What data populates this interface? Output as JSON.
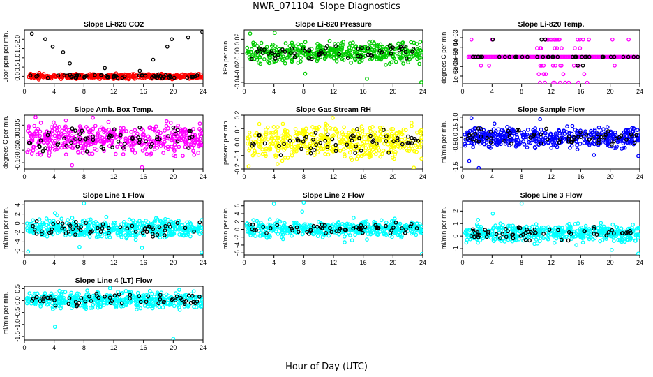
{
  "header": {
    "site": "NWR_071104",
    "title": "Slope Diagnostics"
  },
  "chart_data": {
    "type": "scatter",
    "xlabel": "Hour of Day (UTC)",
    "x_ticks": [
      0,
      4,
      8,
      12,
      16,
      20,
      24
    ],
    "xlim": [
      0,
      24
    ],
    "panels": [
      {
        "title": "Slope Li-820 CO2",
        "ylabel": "Licor ppm per min.",
        "color": "#ff0000",
        "ylim": [
          -0.4,
          2.5
        ],
        "yticks": [
          "0.0",
          "0.5",
          "1.0",
          "1.5",
          "2.0"
        ],
        "ytick_values": [
          0,
          0.5,
          1.0,
          1.5,
          2.0
        ],
        "band": [
          -0.15,
          0.15
        ],
        "seed": 11,
        "n": 420,
        "outliers": [
          [
            1,
            2.3
          ],
          [
            2.8,
            2.0
          ],
          [
            3.8,
            1.6
          ],
          [
            5.2,
            1.3
          ],
          [
            6.1,
            0.7
          ],
          [
            10.8,
            0.45
          ],
          [
            15.5,
            0.3
          ],
          [
            17.3,
            0.9
          ],
          [
            19.2,
            1.6
          ],
          [
            19.8,
            2.0
          ],
          [
            22,
            2.1
          ],
          [
            23.9,
            2.4
          ]
        ]
      },
      {
        "title": "Slope Li-820 Pressure",
        "ylabel": "kPa per min.",
        "color": "#00cc00",
        "ylim": [
          -0.042,
          0.033
        ],
        "yticks": [
          "-0.04",
          "-0.02",
          "0.00",
          "0.02"
        ],
        "ytick_values": [
          -0.04,
          -0.02,
          0.0,
          0.02
        ],
        "band": [
          -0.015,
          0.018
        ],
        "seed": 23,
        "n": 420,
        "outliers": [
          [
            0.8,
            0.028
          ],
          [
            16.5,
            -0.035
          ],
          [
            23.8,
            -0.04
          ],
          [
            8.2,
            -0.028
          ],
          [
            4.1,
            0.029
          ]
        ]
      },
      {
        "title": "Slope Li-820 Temp.",
        "ylabel": "degrees C per min.",
        "color": "#ff00ff",
        "ylim": [
          -0.0014,
          0.0014
        ],
        "yticks": [
          "-1e-03",
          "-5e-04",
          "0e+00",
          "5e-04",
          "1e-03"
        ],
        "ytick_values": [
          -0.001,
          -0.0005,
          0,
          0.0005,
          0.001
        ],
        "discrete": true,
        "seed": 37
      },
      {
        "title": "Slope Amb. Box Temp.",
        "ylabel": "degrees C per min.",
        "color": "#ff00ff",
        "ylim": [
          -0.125,
          0.09
        ],
        "yticks": [
          "-0.10",
          "-0.05",
          "0.00",
          "0.05"
        ],
        "ytick_values": [
          -0.1,
          -0.05,
          0,
          0.05
        ],
        "band": [
          -0.075,
          0.06
        ],
        "seed": 41,
        "n": 460,
        "outliers": [
          [
            1.5,
            0.082
          ],
          [
            6.4,
            -0.11
          ],
          [
            15.8,
            -0.118
          ],
          [
            9.2,
            0.08
          ]
        ]
      },
      {
        "title": "Slope Gas Stream RH",
        "ylabel": "percent per min.",
        "color": "#ffff00",
        "ylim": [
          -0.2,
          0.2
        ],
        "yticks": [
          "-0.2",
          "-0.1",
          "0.0",
          "0.1",
          "0.2"
        ],
        "ytick_values": [
          -0.2,
          -0.1,
          0,
          0.1,
          0.2
        ],
        "band": [
          -0.14,
          0.15
        ],
        "seed": 53,
        "n": 460,
        "outliers": [
          [
            22.8,
            -0.19
          ],
          [
            0.6,
            -0.18
          ],
          [
            11.9,
            0.18
          ]
        ]
      },
      {
        "title": "Slope Sample Flow",
        "ylabel": "ml/min per min.",
        "color": "#0000ff",
        "ylim": [
          -1.6,
          1.1
        ],
        "yticks": [
          "-1.5",
          "-0.5",
          "0.0",
          "0.5",
          "1.0"
        ],
        "ytick_values": [
          -1.5,
          -0.5,
          0,
          0.5,
          1.0
        ],
        "band": [
          -0.6,
          0.6
        ],
        "seed": 67,
        "n": 460,
        "outliers": [
          [
            2.2,
            -1.55
          ],
          [
            1.2,
            0.95
          ],
          [
            0.9,
            -1.2
          ],
          [
            10.5,
            0.9
          ],
          [
            17.8,
            -0.9
          ],
          [
            23.8,
            -0.95
          ]
        ]
      },
      {
        "title": "Slope Line 1 Flow",
        "ylabel": "ml/min per min.",
        "color": "#00ffff",
        "ylim": [
          -6.8,
          4.8
        ],
        "yticks": [
          "-6",
          "-4",
          "-2",
          "0",
          "2",
          "4"
        ],
        "ytick_values": [
          -6,
          -4,
          -2,
          0,
          2,
          4
        ],
        "band": [
          -3.4,
          1.2
        ],
        "seed": 79,
        "n": 460,
        "outliers": [
          [
            8,
            4.3
          ],
          [
            4.1,
            2.2
          ],
          [
            0.5,
            -6.1
          ],
          [
            23.8,
            -6.3
          ],
          [
            15.8,
            -5.3
          ],
          [
            7.4,
            -5.1
          ]
        ]
      },
      {
        "title": "Slope Line 2 Flow",
        "ylabel": "ml/min per min.",
        "color": "#00ffff",
        "ylim": [
          -6.5,
          7.2
        ],
        "yticks": [
          "-6",
          "-4",
          "-2",
          "0",
          "2",
          "4",
          "6"
        ],
        "ytick_values": [
          -6,
          -4,
          -2,
          0,
          2,
          4,
          6
        ],
        "band": [
          -2.2,
          2.6
        ],
        "seed": 83,
        "n": 460,
        "outliers": [
          [
            4,
            6.5
          ],
          [
            8,
            6.8
          ],
          [
            7.8,
            4.5
          ],
          [
            23.9,
            -6.3
          ],
          [
            13.5,
            -3.3
          ],
          [
            14.5,
            -2.8
          ],
          [
            16.5,
            -2.6
          ]
        ]
      },
      {
        "title": "Slope Line 3 Flow",
        "ylabel": "ml/min per min.",
        "color": "#00ffff",
        "ylim": [
          -1.5,
          2.8
        ],
        "yticks": [
          "-1",
          "0",
          "1",
          "2"
        ],
        "ytick_values": [
          -1,
          0,
          1,
          2
        ],
        "band": [
          -0.6,
          1.0
        ],
        "seed": 97,
        "n": 460,
        "outliers": [
          [
            8,
            2.6
          ],
          [
            4.1,
            1.8
          ],
          [
            23.8,
            -1.4
          ],
          [
            20.2,
            -1.1
          ],
          [
            2.1,
            1.3
          ]
        ]
      },
      {
        "title": "Slope Line 4 (LT) Flow",
        "ylabel": "ml/min per min.",
        "color": "#00ffff",
        "ylim": [
          -1.65,
          0.6
        ],
        "yticks": [
          "-1.5",
          "-1.0",
          "-0.5",
          "0.0",
          "0.5"
        ],
        "ytick_values": [
          -1.5,
          -1.0,
          -0.5,
          0,
          0.5
        ],
        "band": [
          -0.35,
          0.42
        ],
        "seed": 101,
        "n": 460,
        "outliers": [
          [
            20,
            -1.6
          ],
          [
            4.1,
            -1.1
          ],
          [
            20.8,
            0.45
          ],
          [
            11.5,
            0.52
          ]
        ]
      }
    ]
  }
}
